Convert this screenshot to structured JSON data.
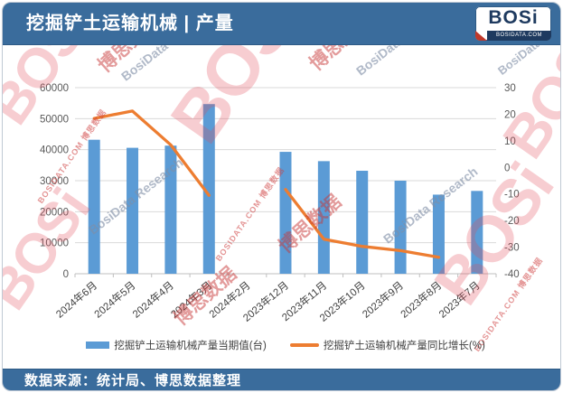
{
  "header": {
    "title": "挖掘铲土运输机械 | 产量",
    "logo": {
      "text": "BOSi",
      "domain": "BOSIDATA.COM"
    }
  },
  "footer": {
    "source": "数据来源：统计局、博思数据整理"
  },
  "watermarks": {
    "logo_text": "BOSi",
    "cn_text": "博思数据",
    "en_text": "BosiData Research",
    "site_text": "BOSIDATA.COM 博思数据"
  },
  "chart_data": {
    "type": "bar+line combo",
    "title": "挖掘铲土运输机械 | 产量",
    "categories": [
      "2024年6月",
      "2024年5月",
      "2024年4月",
      "2024年3月",
      "2024年2月",
      "2023年12月",
      "2023年11月",
      "2023年10月",
      "2023年9月",
      "2023年8月",
      "2023年7月"
    ],
    "series": [
      {
        "name": "挖掘铲土运输机械产量当期值(台)",
        "type": "bar",
        "axis": "left",
        "color": "#5B9BD5",
        "values": [
          43200,
          40600,
          41300,
          54700,
          null,
          39300,
          36300,
          33200,
          30000,
          25500,
          26700
        ]
      },
      {
        "name": "挖掘铲土运输机械产量同比增长(%)",
        "type": "line",
        "axis": "right",
        "color": "#ED7D31",
        "values": [
          18.4,
          21.2,
          8.5,
          -10.5,
          null,
          -8.3,
          -27.0,
          -29.7,
          -31.3,
          -33.8,
          null
        ]
      }
    ],
    "left_axis": {
      "min": 0,
      "max": 60000,
      "step": 10000,
      "tick_labels": [
        "0",
        "10000",
        "20000",
        "30000",
        "40000",
        "50000",
        "60000"
      ]
    },
    "right_axis": {
      "min": -40,
      "max": 30,
      "step": 10,
      "tick_labels": [
        "-40",
        "-30",
        "-20",
        "-10",
        "0",
        "10",
        "20",
        "30"
      ]
    },
    "grid": true,
    "legend_position": "bottom",
    "gridline_color": "#D9D9D9",
    "axis_line_color": "#BFBFBF"
  }
}
